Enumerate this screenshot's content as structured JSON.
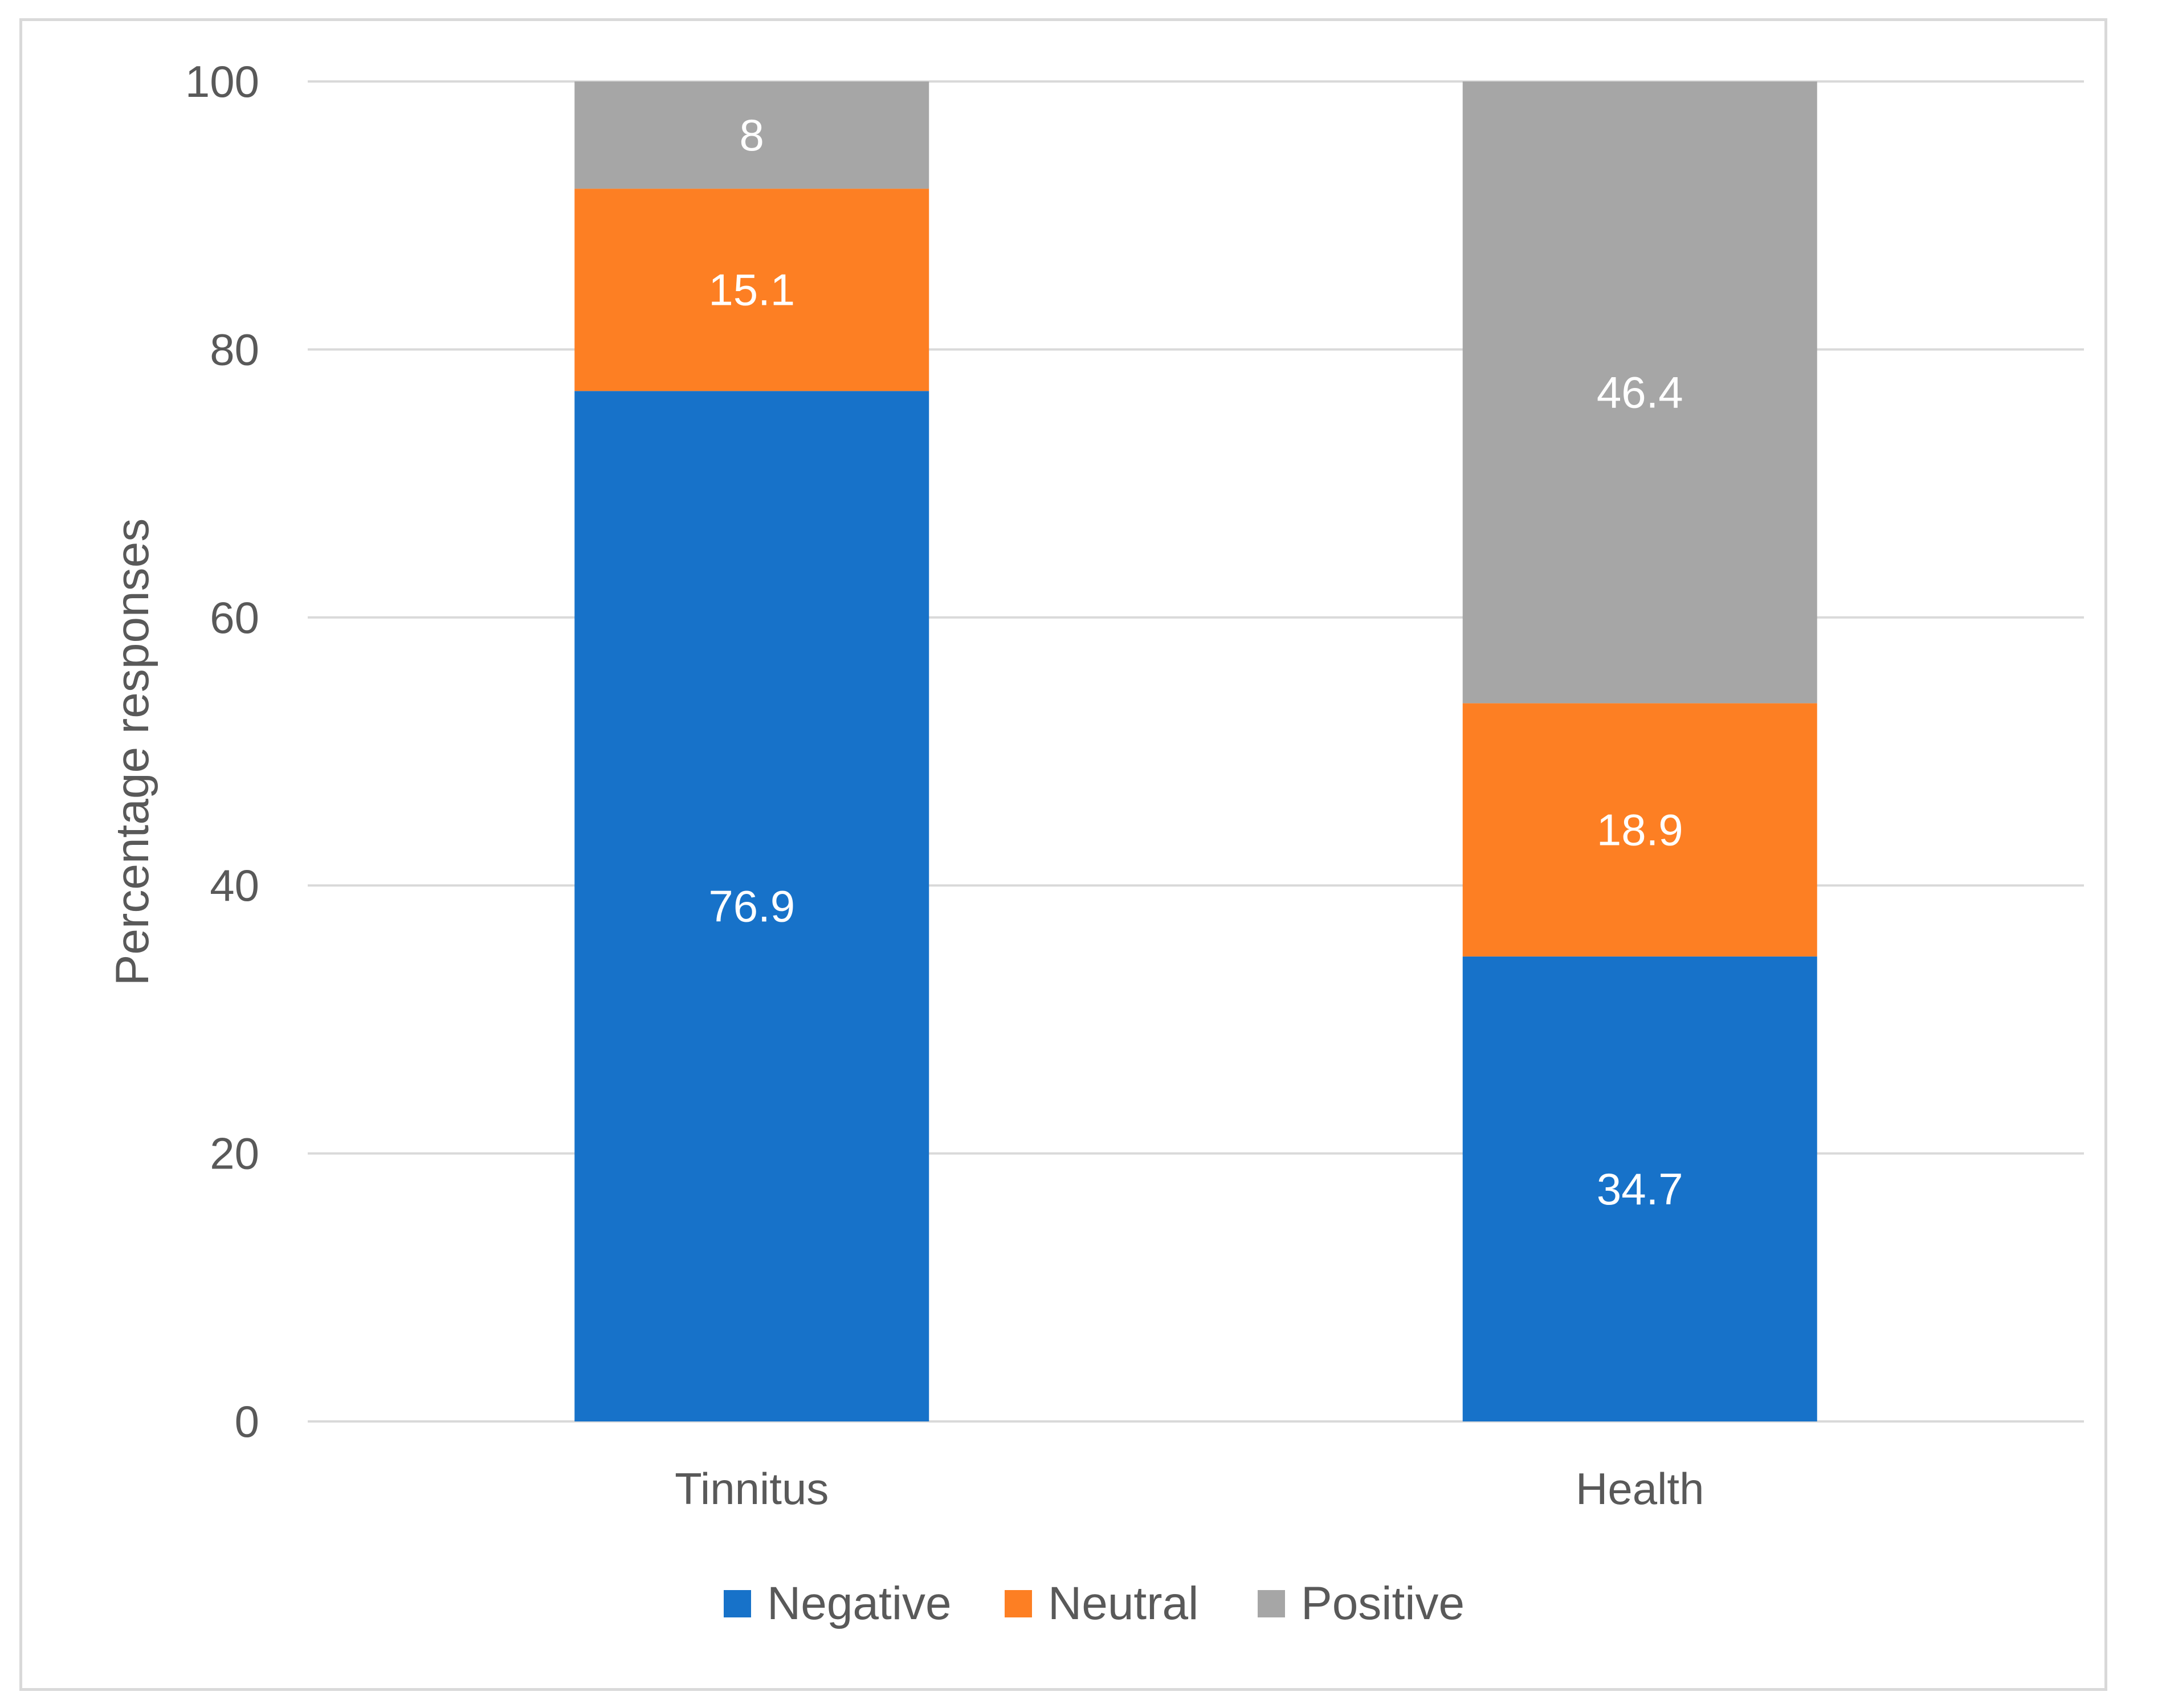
{
  "chart_data": {
    "type": "bar",
    "stacked": true,
    "title": "",
    "xlabel": "",
    "ylabel": "Percentage responses",
    "ylim": [
      0,
      100
    ],
    "yticks": [
      0,
      20,
      40,
      60,
      80,
      100
    ],
    "grid": true,
    "legend_position": "bottom",
    "categories": [
      "Tinnitus",
      "Health"
    ],
    "series": [
      {
        "name": "Negative",
        "color": "#1772c9",
        "values": [
          76.9,
          34.7
        ],
        "labels": [
          "76.9",
          "34.7"
        ]
      },
      {
        "name": "Neutral",
        "color": "#fd7f23",
        "values": [
          15.1,
          18.9
        ],
        "labels": [
          "15.1",
          "18.9"
        ]
      },
      {
        "name": "Positive",
        "color": "#a6a6a6",
        "values": [
          8,
          46.4
        ],
        "labels": [
          "8",
          "46.4"
        ]
      }
    ]
  }
}
